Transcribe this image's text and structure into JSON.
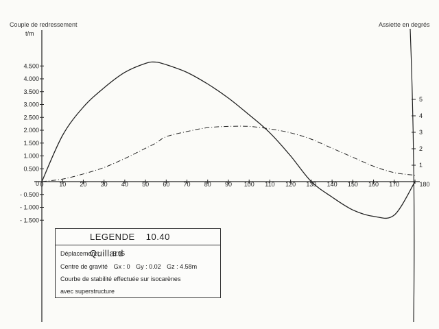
{
  "chart_data": {
    "type": "line",
    "title": "Couple de redressement",
    "ylabel": "t/m",
    "right_title": "Assiette en degrés",
    "x": [
      0,
      10,
      20,
      30,
      40,
      50,
      55,
      60,
      70,
      80,
      90,
      100,
      110,
      120,
      130,
      140,
      150,
      160,
      170,
      180
    ],
    "series": [
      {
        "values": [
          0,
          1.8,
          2.9,
          3.65,
          4.25,
          4.6,
          4.65,
          4.55,
          4.25,
          3.8,
          3.25,
          2.6,
          1.9,
          1.0,
          0,
          -0.6,
          -1.1,
          -1.35,
          -1.3,
          0
        ],
        "style": "solid"
      },
      {
        "values": [
          0,
          0.1,
          0.3,
          0.55,
          0.9,
          1.3,
          1.5,
          1.75,
          1.95,
          2.1,
          2.15,
          2.15,
          2.05,
          1.9,
          1.65,
          1.3,
          0.95,
          0.6,
          0.35,
          0.25
        ],
        "style": "dashed"
      }
    ],
    "x_ticks": [
      "0",
      "10",
      "20",
      "30",
      "40",
      "50",
      "60",
      "70",
      "80",
      "90",
      "100",
      "110",
      "120",
      "130",
      "140",
      "150",
      "160",
      "170",
      "180"
    ],
    "y_ticks": [
      "4.500",
      "4.000",
      "3.500",
      "3.000",
      "2.500",
      "2.000",
      "1.500",
      "1.000",
      "0.500",
      "0",
      "- 0.500",
      "- 1.000",
      "- 1.500"
    ],
    "right_ticks": [
      "5",
      "4",
      "3",
      "2",
      "1"
    ],
    "xlim": [
      0,
      180
    ],
    "ylim": [
      -1.7,
      4.8
    ],
    "grid": false,
    "legend_placement": "bottom-left"
  },
  "legend": {
    "title": "LEGENDE",
    "number": "10.40",
    "name": "Quillard",
    "deplacement_label": "Déplacement :",
    "deplacement_value": "5.95",
    "cog_label": "Centre de gravité",
    "gx": "Gx : 0",
    "gy": "Gy : 0.02",
    "gz": "Gz : 4.58m",
    "note_line1": "Courbe de stabilité effectuée sur isocarènes",
    "note_line2": "avec superstructure"
  }
}
